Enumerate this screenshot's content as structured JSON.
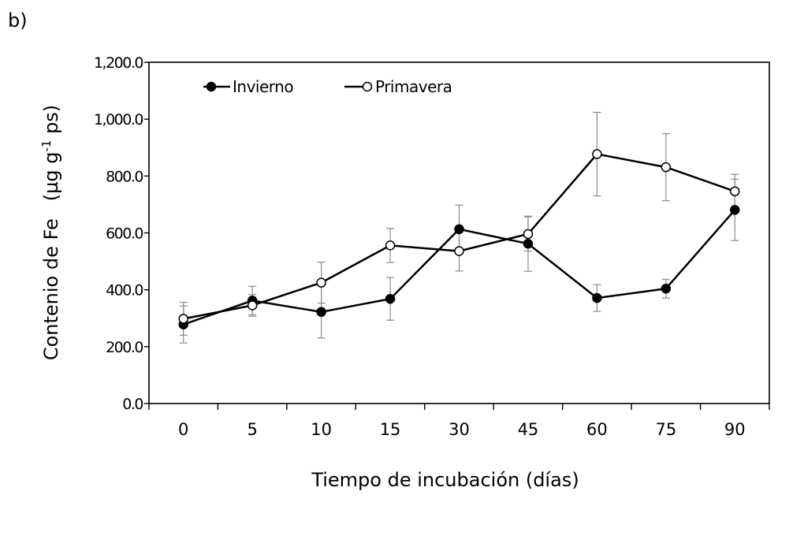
{
  "panel_label": "b)",
  "chart_data": {
    "type": "line",
    "x_label": "Tiempo de incubación (días)",
    "y_label_main": "Contenio de Fe",
    "y_label_unit_pre": "(µg g",
    "y_label_unit_sup": "-1",
    "y_label_unit_post": " ps)",
    "categories": [
      "0",
      "5",
      "10",
      "15",
      "30",
      "45",
      "60",
      "75",
      "90"
    ],
    "y_ticks": [
      "0.0",
      "200.0",
      "400.0",
      "600.0",
      "800.0",
      "1,000.0",
      "1,200.0"
    ],
    "ylim": [
      0,
      1200
    ],
    "legend_position": "top-left",
    "series": [
      {
        "name": "Invierno",
        "marker": "filled-circle",
        "values": [
          278,
          362,
          322,
          368,
          613,
          562,
          371,
          404,
          681
        ],
        "errors": [
          65,
          50,
          92,
          75,
          85,
          97,
          47,
          33,
          108
        ]
      },
      {
        "name": "Primavera",
        "marker": "open-circle",
        "values": [
          298,
          345,
          425,
          556,
          536,
          596,
          877,
          831,
          746
        ],
        "errors": [
          58,
          38,
          72,
          60,
          70,
          60,
          147,
          118,
          60
        ]
      }
    ]
  }
}
